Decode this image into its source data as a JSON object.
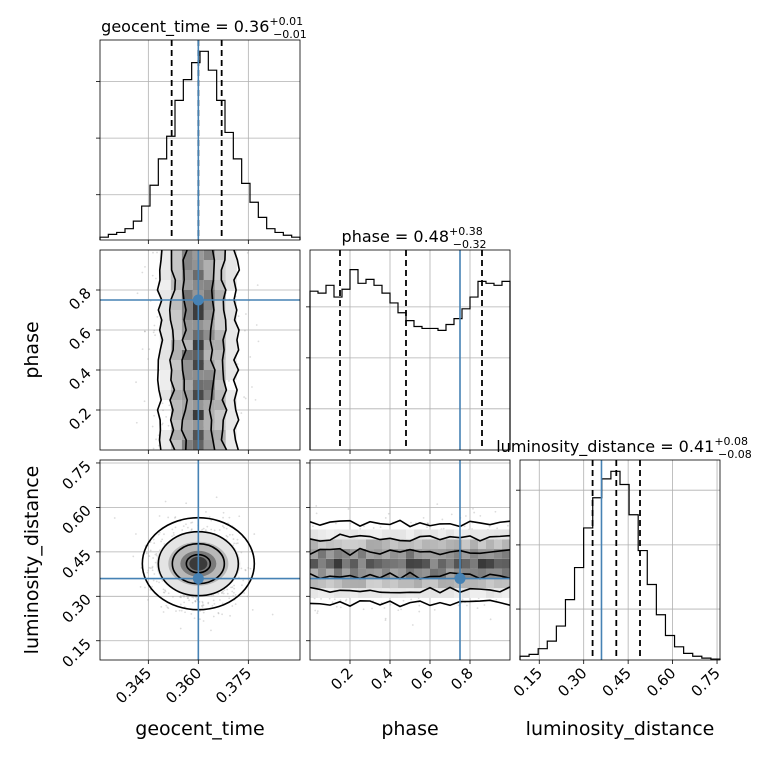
{
  "chart_data": {
    "type": "corner",
    "params": [
      "geocent_time",
      "phase",
      "luminosity_distance"
    ],
    "truth": {
      "geocent_time": 0.36,
      "phase": 0.75,
      "luminosity_distance": 0.36
    },
    "colors": {
      "truth": "#4682b4",
      "hist": "#000000",
      "grid": "#b0b0b0",
      "density": "#000000"
    },
    "titles": [
      {
        "param": "geocent_time",
        "text": "geocent_time = 0.36",
        "sup": "+0.01",
        "sub": "−0.01"
      },
      {
        "param": "phase",
        "text": "phase = 0.48",
        "sup": "+0.38",
        "sub": "−0.32"
      },
      {
        "param": "luminosity_distance",
        "text": "luminosity_distance = 0.41",
        "sup": "+0.08",
        "sub": "−0.08"
      }
    ],
    "axes": {
      "geocent_time": {
        "label": "geocent_time",
        "range": [
          0.3305,
          0.3905
        ],
        "ticks": [
          0.345,
          0.36,
          0.375
        ],
        "tick_labels": [
          "0.345",
          "0.360",
          "0.375"
        ],
        "quantiles": [
          0.352,
          0.36,
          0.367
        ]
      },
      "phase": {
        "label": "phase",
        "range": [
          0.0,
          1.0
        ],
        "ticks": [
          0.2,
          0.4,
          0.6,
          0.8
        ],
        "tick_labels": [
          "0.2",
          "0.4",
          "0.6",
          "0.8"
        ],
        "quantiles": [
          0.15,
          0.48,
          0.86
        ]
      },
      "luminosity_distance": {
        "label": "luminosity_distance",
        "range": [
          0.085,
          0.76
        ],
        "ticks": [
          0.15,
          0.3,
          0.45,
          0.6,
          0.75
        ],
        "tick_labels": [
          "0.15",
          "0.30",
          "0.45",
          "0.60",
          "0.75"
        ],
        "quantiles": [
          0.33,
          0.41,
          0.49
        ]
      }
    },
    "histograms": {
      "geocent_time": [
        0.015,
        0.03,
        0.04,
        0.06,
        0.1,
        0.18,
        0.29,
        0.43,
        0.55,
        0.74,
        0.85,
        0.94,
        1.0,
        0.9,
        0.74,
        0.57,
        0.43,
        0.3,
        0.2,
        0.12,
        0.06,
        0.04,
        0.025,
        0.015
      ],
      "phase": [
        0.81,
        0.8,
        0.84,
        0.78,
        0.82,
        0.92,
        0.85,
        0.87,
        0.84,
        0.8,
        0.75,
        0.7,
        0.66,
        0.63,
        0.62,
        0.62,
        0.61,
        0.64,
        0.67,
        0.72,
        0.78,
        0.86,
        0.85,
        0.84,
        0.86
      ],
      "luminosity_distance": [
        0.02,
        0.03,
        0.06,
        0.1,
        0.18,
        0.32,
        0.49,
        0.7,
        0.86,
        0.96,
        1.0,
        0.93,
        0.77,
        0.58,
        0.4,
        0.24,
        0.13,
        0.07,
        0.035,
        0.02,
        0.01,
        0.005
      ]
    },
    "hist_ylim": {
      "geocent_time": [
        0,
        1.06
      ],
      "phase": [
        0,
        1.02
      ],
      "luminosity_distance": [
        0,
        1.06
      ]
    },
    "hist_yticks": {
      "geocent_time": [
        0.24,
        0.54,
        0.84
      ],
      "phase": [
        0.21,
        0.47,
        0.73
      ],
      "luminosity_distance": [
        0.27,
        0.61,
        0.9
      ]
    },
    "grid": true
  }
}
